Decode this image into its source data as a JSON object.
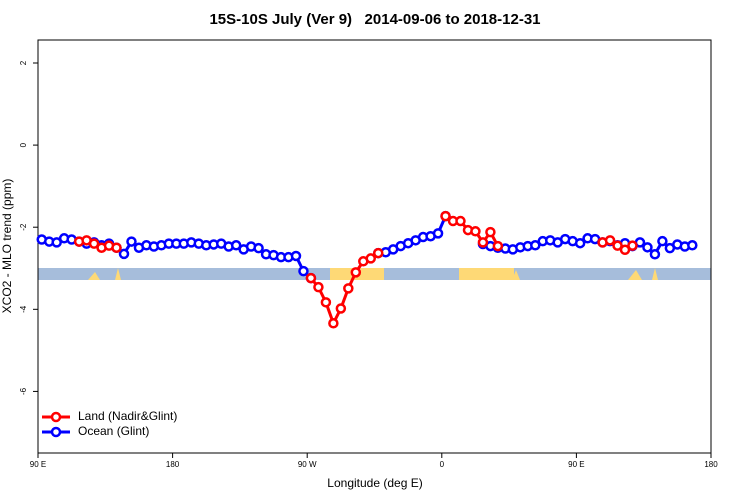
{
  "chart_data": {
    "type": "line",
    "title": "15S-10S July (Ver 9)   2014-09-06 to 2018-12-31",
    "x_label": "Longitude (deg E)",
    "y_label": "XCO2 - MLO trend (ppm)",
    "xlim": [
      90,
      540
    ],
    "ylim": [
      -7.5,
      2.56
    ],
    "xticks": [
      {
        "value": 90,
        "label": "90 E"
      },
      180,
      {
        "value": 270,
        "label": "90 W"
      },
      {
        "value": 360,
        "label": "0"
      },
      {
        "value": 450,
        "label": "90 E"
      },
      {
        "value": 540,
        "label": "180"
      }
    ],
    "yticks": [
      2,
      0,
      -2,
      -4,
      -6
    ],
    "legend": "bottom-left",
    "series": [
      {
        "name": "Land (Nadir&Glint)",
        "color": "#ff0000",
        "x": [
          117.5,
          122.5,
          127.5,
          132.5,
          137.5,
          142.5,
          147.5,
          272.5,
          277.5,
          282.5,
          287.5,
          292.5,
          297.5,
          302.5,
          307.5,
          312.5,
          317.5,
          322.5,
          362.5,
          367.5,
          372.5,
          377.5,
          382.5,
          387.5,
          392.5,
          397.5,
          402.5,
          467.5,
          472.5,
          477.5,
          482.5,
          487.5
        ],
        "values": [
          -2.35,
          -2.32,
          -2.4,
          -2.5,
          -2.45,
          -2.5,
          null,
          -3.24,
          -3.46,
          -3.83,
          -4.34,
          -3.98,
          -3.49,
          -3.1,
          -2.83,
          -2.76,
          -2.63,
          null,
          -1.73,
          -1.85,
          -1.85,
          -2.07,
          -2.1,
          -2.37,
          -2.12,
          -2.46,
          null,
          -2.37,
          -2.32,
          -2.45,
          -2.55,
          -2.45
        ]
      },
      {
        "name": "Ocean (Glint)",
        "color": "#0000ff",
        "x": [
          92.5,
          97.5,
          102.5,
          107.5,
          112.5,
          117.5,
          122.5,
          127.5,
          132.5,
          137.5,
          142.5,
          147.5,
          152.5,
          157.5,
          162.5,
          167.5,
          172.5,
          177.5,
          182.5,
          187.5,
          192.5,
          197.5,
          202.5,
          207.5,
          212.5,
          217.5,
          222.5,
          227.5,
          232.5,
          237.5,
          242.5,
          247.5,
          252.5,
          257.5,
          262.5,
          267.5,
          272.5,
          277.5,
          282.5,
          287.5,
          292.5,
          297.5,
          302.5,
          307.5,
          312.5,
          317.5,
          322.5,
          327.5,
          332.5,
          337.5,
          342.5,
          347.5,
          352.5,
          357.5,
          362.5,
          367.5,
          372.5,
          377.5,
          382.5,
          387.5,
          392.5,
          397.5,
          402.5,
          407.5,
          412.5,
          417.5,
          422.5,
          427.5,
          432.5,
          437.5,
          442.5,
          447.5,
          452.5,
          457.5,
          462.5,
          467.5,
          472.5,
          477.5,
          482.5,
          487.5,
          492.5,
          497.5,
          502.5,
          507.5,
          512.5,
          517.5,
          522.5,
          527.5
        ],
        "values": [
          -2.3,
          -2.35,
          -2.37,
          -2.27,
          -2.3,
          -2.35,
          -2.4,
          -2.37,
          -2.44,
          -2.4,
          -2.5,
          -2.65,
          -2.35,
          -2.5,
          -2.44,
          -2.47,
          -2.44,
          -2.4,
          -2.4,
          -2.4,
          -2.37,
          -2.4,
          -2.44,
          -2.42,
          -2.4,
          -2.47,
          -2.44,
          -2.54,
          -2.47,
          -2.51,
          -2.66,
          -2.68,
          -2.73,
          -2.73,
          -2.7,
          -3.07,
          -3.24,
          null,
          null,
          null,
          null,
          null,
          null,
          null,
          null,
          -2.63,
          -2.61,
          -2.54,
          -2.46,
          -2.39,
          -2.32,
          -2.24,
          -2.22,
          -2.15,
          -1.73,
          null,
          null,
          null,
          null,
          -2.41,
          -2.46,
          -2.5,
          -2.52,
          -2.54,
          -2.49,
          -2.46,
          -2.44,
          -2.34,
          -2.32,
          -2.37,
          -2.29,
          -2.34,
          -2.39,
          -2.27,
          -2.29,
          -2.37,
          -2.34,
          -2.44,
          -2.39,
          -2.46,
          -2.37,
          -2.49,
          -2.66,
          -2.34,
          -2.51,
          -2.42,
          -2.47,
          -2.44
        ]
      }
    ]
  }
}
